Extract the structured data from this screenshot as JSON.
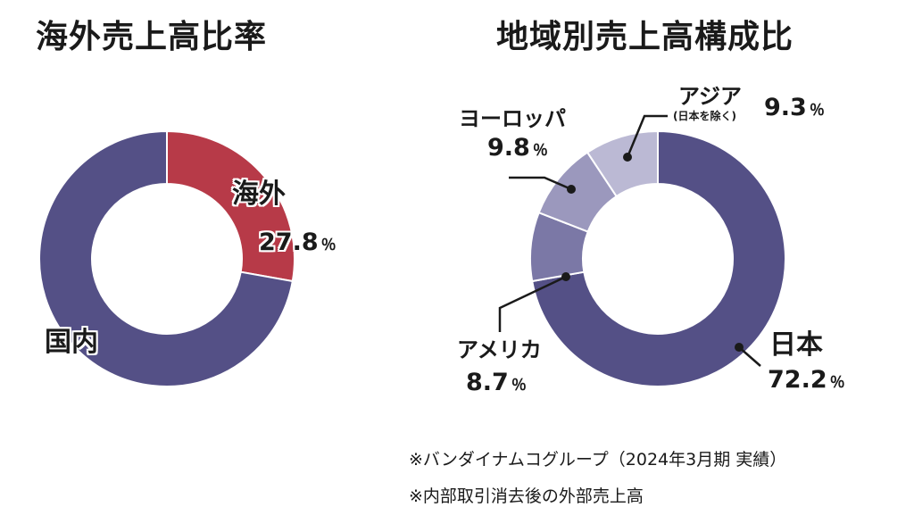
{
  "chart_data": [
    {
      "type": "pie",
      "title": "海外売上高比率",
      "slices": [
        {
          "label": "海外",
          "value": 27.8,
          "display": "27.8",
          "color": "#b73a48"
        },
        {
          "label": "国内",
          "value": 72.2,
          "display": "",
          "color": "#545086"
        }
      ],
      "unit": "％"
    },
    {
      "type": "pie",
      "title": "地域別売上高構成比",
      "slices": [
        {
          "label": "日本",
          "value": 72.2,
          "display": "72.2",
          "color": "#545086"
        },
        {
          "label": "アメリカ",
          "value": 8.7,
          "display": "8.7",
          "color": "#7b78a6"
        },
        {
          "label": "ヨーロッパ",
          "value": 9.8,
          "display": "9.8",
          "color": "#9b98bd"
        },
        {
          "label": "アジア",
          "sublabel": "(日本を除く)",
          "value": 9.3,
          "display": "9.3",
          "color": "#bbb9d4"
        }
      ],
      "unit": "％"
    }
  ],
  "notes": [
    "※バンダイナムコグループ（2024年3月期 実績）",
    "※内部取引消去後の外部売上高"
  ]
}
